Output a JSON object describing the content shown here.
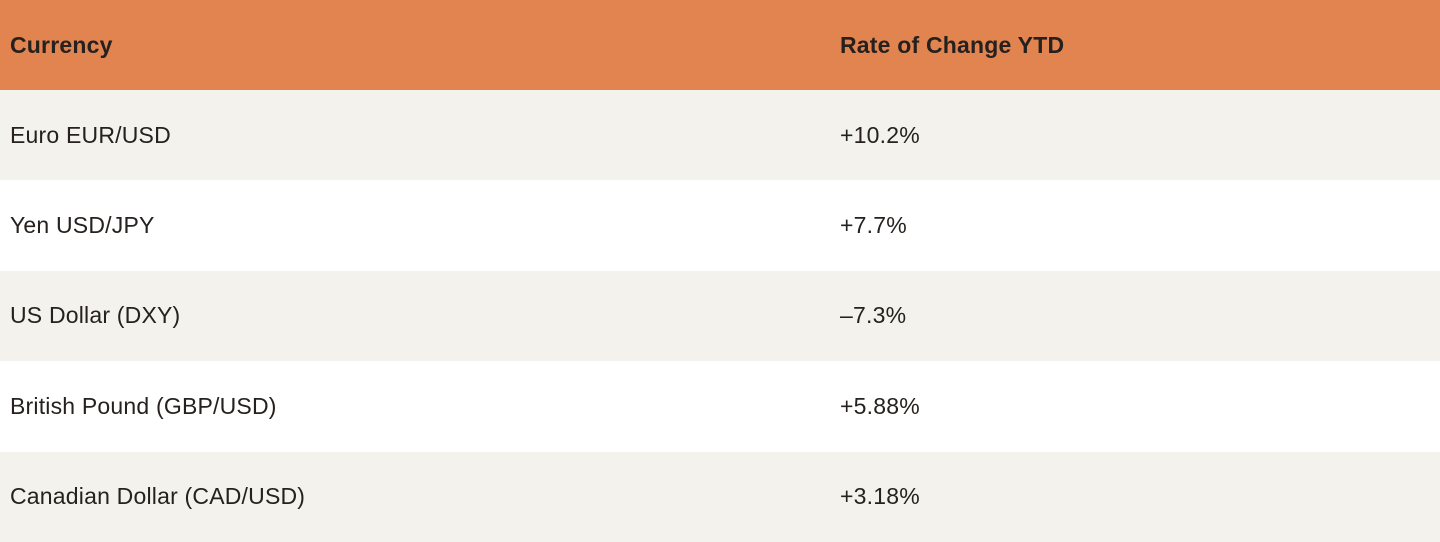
{
  "table": {
    "columns": [
      {
        "label": "Currency"
      },
      {
        "label": "Rate of Change YTD"
      }
    ],
    "rows": [
      {
        "currency": "Euro EUR/USD",
        "rate": "+10.2%"
      },
      {
        "currency": "Yen USD/JPY",
        "rate": "+7.7%"
      },
      {
        "currency": "US Dollar (DXY)",
        "rate": "–7.3%"
      },
      {
        "currency": "British Pound (GBP/USD)",
        "rate": "+5.88%"
      },
      {
        "currency": "Canadian Dollar (CAD/USD)",
        "rate": "+3.18%"
      }
    ]
  },
  "colors": {
    "header_bg": "#E18450",
    "row_alt_bg": "#F3F2EC",
    "row_bg": "#FFFFFF",
    "text": "#26211E"
  },
  "chart_data": {
    "type": "table",
    "title": "",
    "columns": [
      "Currency",
      "Rate of Change YTD"
    ],
    "rows": [
      [
        "Euro EUR/USD",
        "+10.2%"
      ],
      [
        "Yen USD/JPY",
        "+7.7%"
      ],
      [
        "US Dollar (DXY)",
        "-7.3%"
      ],
      [
        "British Pound (GBP/USD)",
        "+5.88%"
      ],
      [
        "Canadian Dollar (CAD/USD)",
        "+3.18%"
      ]
    ],
    "categories": [
      "Euro EUR/USD",
      "Yen USD/JPY",
      "US Dollar (DXY)",
      "British Pound (GBP/USD)",
      "Canadian Dollar (CAD/USD)"
    ],
    "values": [
      10.2,
      7.7,
      -7.3,
      5.88,
      3.18
    ],
    "value_unit": "percent YTD rate of change",
    "layout": {
      "header_background": "#E18450",
      "zebra_striping": true,
      "first_stripe_background": "#F3F2EC",
      "second_stripe_background": "#FFFFFF"
    }
  }
}
